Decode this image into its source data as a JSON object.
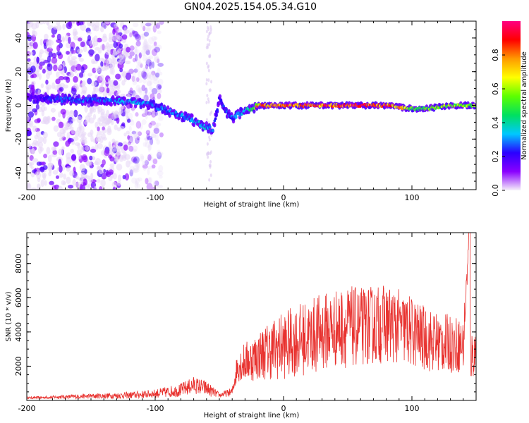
{
  "figure_title": "GN04.2025.154.05.34.G10",
  "colors": {
    "snr_line": "#e8312e",
    "colorbar_stops": [
      "#f6f0fa",
      "#8a00ff",
      "#2a00ff",
      "#00c8ff",
      "#00e060",
      "#5cff00",
      "#ffff00",
      "#ff9a00",
      "#ff0000",
      "#ff0080"
    ]
  },
  "chart_data": [
    {
      "type": "heatmap",
      "title": "",
      "xlabel": "Height of straight line (km)",
      "ylabel": "Frequency (Hz)",
      "xlim": [
        -200,
        150
      ],
      "ylim": [
        -50,
        50
      ],
      "x_ticks": [
        -200,
        -100,
        0,
        100
      ],
      "y_ticks": [
        -40,
        -20,
        0,
        20,
        40
      ],
      "colorbar": {
        "label": "Normalized spectral amplitude",
        "range": [
          0,
          1
        ],
        "ticks": [
          "0.0",
          "0.2",
          "0.4",
          "0.6",
          "0.8"
        ]
      },
      "ridge": {
        "x": [
          -200,
          -180,
          -160,
          -140,
          -120,
          -105,
          -95,
          -80,
          -70,
          -60,
          -55,
          -50,
          -45,
          -40,
          -35,
          -30,
          -25,
          -20,
          0,
          20,
          50,
          80,
          90,
          100,
          110,
          120,
          130,
          150
        ],
        "y": [
          5,
          4,
          3,
          3,
          2,
          1,
          -2,
          -6,
          -9,
          -13,
          -15,
          4,
          -3,
          -8,
          -5,
          -3,
          -2,
          0,
          0,
          0,
          0,
          0,
          -1,
          -2,
          -2,
          -1,
          0,
          0
        ],
        "amplitude": [
          0.15,
          0.25,
          0.3,
          0.3,
          0.35,
          0.3,
          0.3,
          0.3,
          0.35,
          0.35,
          0.3,
          0.25,
          0.25,
          0.3,
          0.3,
          0.4,
          0.45,
          0.8,
          0.85,
          0.9,
          0.9,
          0.9,
          0.8,
          0.55,
          0.55,
          0.6,
          0.6,
          0.6
        ]
      },
      "noise_region_x": [
        -200,
        -105
      ]
    },
    {
      "type": "line",
      "title": "",
      "xlabel": "Height of straight line (km)",
      "ylabel": "SNR (10 * v/v)",
      "xlim": [
        -200,
        150
      ],
      "ylim": [
        0,
        9800
      ],
      "x_ticks": [
        -200,
        -100,
        0,
        100
      ],
      "y_ticks": [
        2000,
        4000,
        6000,
        8000
      ],
      "series": [
        {
          "envelope_x": [
            -200,
            -150,
            -120,
            -100,
            -80,
            -70,
            -60,
            -50,
            -40,
            -36,
            -32,
            -25,
            -15,
            -5,
            0,
            10,
            20,
            30,
            40,
            50,
            60,
            70,
            80,
            90,
            100,
            110,
            120,
            130,
            140,
            144,
            146,
            150
          ],
          "envelope_y": [
            150,
            250,
            300,
            400,
            600,
            900,
            700,
            300,
            500,
            2000,
            2200,
            2400,
            2800,
            3100,
            3200,
            3500,
            3700,
            4000,
            4200,
            4300,
            4300,
            4400,
            4500,
            4300,
            4000,
            3600,
            3400,
            3300,
            3200,
            8800,
            2500,
            3000
          ],
          "noise_y": [
            60,
            150,
            200,
            250,
            400,
            500,
            450,
            150,
            250,
            900,
            1100,
            1300,
            1600,
            1900,
            2000,
            2100,
            2200,
            2300,
            2300,
            2400,
            2300,
            2300,
            2300,
            2200,
            2100,
            1900,
            1800,
            1700,
            1600,
            600,
            1500,
            1500
          ]
        }
      ]
    }
  ]
}
